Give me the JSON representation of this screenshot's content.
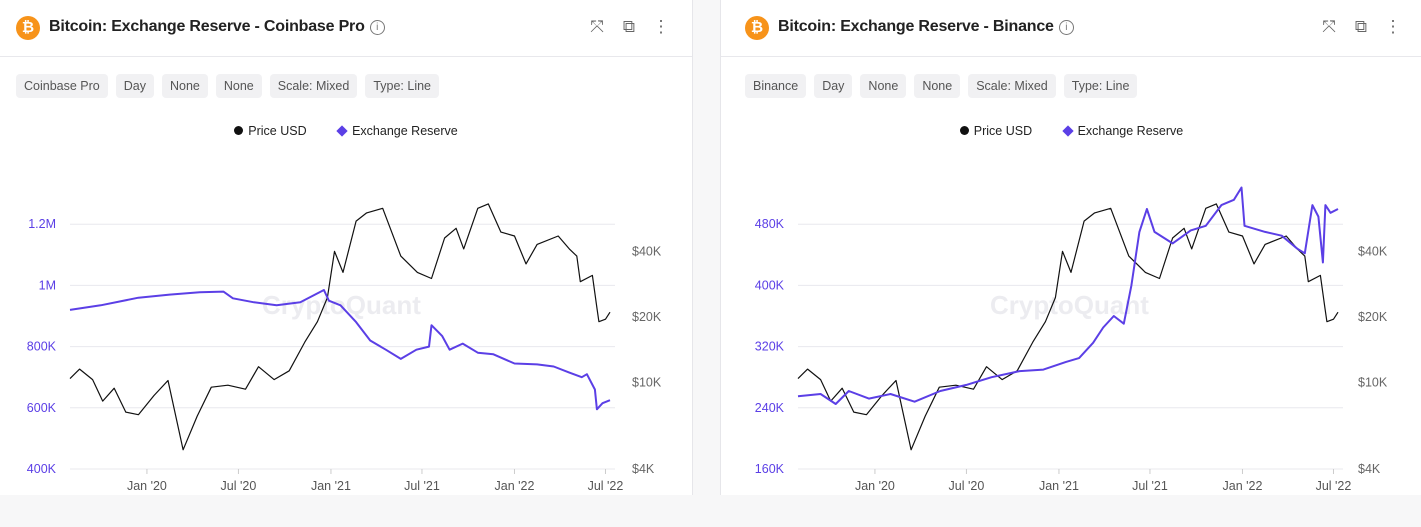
{
  "panels": [
    {
      "title": "Bitcoin: Exchange Reserve - Coinbase Pro",
      "chips": [
        "Coinbase Pro",
        "Day",
        "None",
        "None",
        "Scale: Mixed",
        "Type: Line"
      ],
      "legend": [
        "Price USD",
        "Exchange Reserve"
      ],
      "watermark": "CryptoQuant"
    },
    {
      "title": "Bitcoin: Exchange Reserve - Binance",
      "chips": [
        "Binance",
        "Day",
        "None",
        "None",
        "Scale: Mixed",
        "Type: Line"
      ],
      "legend": [
        "Price USD",
        "Exchange Reserve"
      ],
      "watermark": "CryptoQuant"
    }
  ],
  "icons": {
    "logo": "bitcoin-icon",
    "info": "info-icon",
    "expand": "expand-icon",
    "popout": "popout-icon",
    "more": "more-vertical-icon"
  },
  "colors": {
    "price": "#111111",
    "reserve": "#5b3fe6",
    "bitcoin": "#f7931a"
  },
  "chart_data": [
    {
      "type": "line",
      "x_ticks": [
        "Jan '20",
        "Jul '20",
        "Jan '21",
        "Jul '21",
        "Jan '22",
        "Jul '22"
      ],
      "x_tick_dates": [
        "2020-01-01",
        "2020-07-01",
        "2021-01-01",
        "2021-07-01",
        "2022-01-01",
        "2022-07-01"
      ],
      "xlim": [
        "2019-08-01",
        "2022-07-10"
      ],
      "y_left": {
        "ticks": [
          "400K",
          "600K",
          "800K",
          "1M",
          "1.2M"
        ],
        "values": [
          400000,
          600000,
          800000,
          1000000,
          1200000
        ],
        "ylim": [
          400000,
          1410000
        ],
        "scale": "linear"
      },
      "y_right": {
        "ticks": [
          "$4K",
          "$10K",
          "$20K",
          "$40K"
        ],
        "values": [
          4000,
          10000,
          20000,
          40000
        ],
        "ylim": [
          4000,
          105000
        ],
        "scale": "log"
      },
      "grid": true,
      "legend": "top-center",
      "series": [
        {
          "name": "Price USD",
          "axis": "right",
          "x": [
            "2019-08-01",
            "2019-08-20",
            "2019-09-15",
            "2019-10-05",
            "2019-10-28",
            "2019-11-20",
            "2019-12-15",
            "2020-01-15",
            "2020-02-12",
            "2020-03-13",
            "2020-04-10",
            "2020-05-08",
            "2020-06-10",
            "2020-07-15",
            "2020-08-10",
            "2020-09-10",
            "2020-10-10",
            "2020-11-10",
            "2020-12-05",
            "2020-12-25",
            "2021-01-08",
            "2021-01-25",
            "2021-02-20",
            "2021-03-13",
            "2021-04-14",
            "2021-05-20",
            "2021-06-22",
            "2021-07-20",
            "2021-08-15",
            "2021-09-07",
            "2021-09-22",
            "2021-10-20",
            "2021-11-10",
            "2021-12-05",
            "2022-01-01",
            "2022-01-24",
            "2022-02-15",
            "2022-03-29",
            "2022-04-20",
            "2022-05-05",
            "2022-05-12",
            "2022-06-05",
            "2022-06-14",
            "2022-06-18",
            "2022-07-01",
            "2022-07-10"
          ],
          "y": [
            10400,
            11500,
            10300,
            8200,
            9400,
            7300,
            7100,
            8700,
            10200,
            4900,
            7000,
            9500,
            9700,
            9300,
            11800,
            10300,
            11300,
            15300,
            19000,
            24500,
            40000,
            32000,
            55000,
            60000,
            63000,
            38000,
            32000,
            30000,
            46000,
            51000,
            41000,
            63000,
            66000,
            49000,
            47000,
            35000,
            43000,
            47000,
            41000,
            38000,
            29000,
            31000,
            22000,
            19000,
            19500,
            21000
          ]
        },
        {
          "name": "Exchange Reserve",
          "axis": "left",
          "x": [
            "2019-08-01",
            "2019-10-01",
            "2019-12-15",
            "2020-02-15",
            "2020-04-15",
            "2020-06-01",
            "2020-06-20",
            "2020-08-01",
            "2020-09-15",
            "2020-11-01",
            "2020-12-18",
            "2020-12-28",
            "2021-01-20",
            "2021-02-20",
            "2021-03-20",
            "2021-04-20",
            "2021-05-20",
            "2021-06-20",
            "2021-07-15",
            "2021-07-20",
            "2021-08-10",
            "2021-08-25",
            "2021-09-20",
            "2021-10-20",
            "2021-11-20",
            "2022-01-01",
            "2022-02-15",
            "2022-03-20",
            "2022-04-20",
            "2022-05-15",
            "2022-05-25",
            "2022-06-10",
            "2022-06-14",
            "2022-06-25",
            "2022-07-10"
          ],
          "y": [
            920000,
            935000,
            960000,
            970000,
            978000,
            980000,
            958000,
            945000,
            935000,
            945000,
            985000,
            950000,
            935000,
            880000,
            820000,
            790000,
            760000,
            790000,
            800000,
            870000,
            835000,
            790000,
            810000,
            780000,
            775000,
            745000,
            742000,
            735000,
            715000,
            700000,
            710000,
            660000,
            595000,
            615000,
            625000
          ]
        }
      ]
    },
    {
      "type": "line",
      "x_ticks": [
        "Jan '20",
        "Jul '20",
        "Jan '21",
        "Jul '21",
        "Jan '22",
        "Jul '22"
      ],
      "x_tick_dates": [
        "2020-01-01",
        "2020-07-01",
        "2021-01-01",
        "2021-07-01",
        "2022-01-01",
        "2022-07-01"
      ],
      "xlim": [
        "2019-08-01",
        "2022-07-10"
      ],
      "y_left": {
        "ticks": [
          "160K",
          "240K",
          "320K",
          "400K",
          "480K"
        ],
        "values": [
          160000,
          240000,
          320000,
          400000,
          480000
        ],
        "ylim": [
          160000,
          564000
        ],
        "scale": "linear"
      },
      "y_right": {
        "ticks": [
          "$4K",
          "$10K",
          "$20K",
          "$40K"
        ],
        "values": [
          4000,
          10000,
          20000,
          40000
        ],
        "ylim": [
          4000,
          105000
        ],
        "scale": "log"
      },
      "grid": true,
      "legend": "top-center",
      "series": [
        {
          "name": "Price USD",
          "axis": "right",
          "x": [
            "2019-08-01",
            "2019-08-20",
            "2019-09-15",
            "2019-10-05",
            "2019-10-28",
            "2019-11-20",
            "2019-12-15",
            "2020-01-15",
            "2020-02-12",
            "2020-03-13",
            "2020-04-10",
            "2020-05-08",
            "2020-06-10",
            "2020-07-15",
            "2020-08-10",
            "2020-09-10",
            "2020-10-10",
            "2020-11-10",
            "2020-12-05",
            "2020-12-25",
            "2021-01-08",
            "2021-01-25",
            "2021-02-20",
            "2021-03-13",
            "2021-04-14",
            "2021-05-20",
            "2021-06-22",
            "2021-07-20",
            "2021-08-15",
            "2021-09-07",
            "2021-09-22",
            "2021-10-20",
            "2021-11-10",
            "2021-12-05",
            "2022-01-01",
            "2022-01-24",
            "2022-02-15",
            "2022-03-29",
            "2022-04-20",
            "2022-05-05",
            "2022-05-12",
            "2022-06-05",
            "2022-06-14",
            "2022-06-18",
            "2022-07-01",
            "2022-07-10"
          ],
          "y": [
            10400,
            11500,
            10300,
            8200,
            9400,
            7300,
            7100,
            8700,
            10200,
            4900,
            7000,
            9500,
            9700,
            9300,
            11800,
            10300,
            11300,
            15300,
            19000,
            24500,
            40000,
            32000,
            55000,
            60000,
            63000,
            38000,
            32000,
            30000,
            46000,
            51000,
            41000,
            63000,
            66000,
            49000,
            47000,
            35000,
            43000,
            47000,
            41000,
            38000,
            29000,
            31000,
            22000,
            19000,
            19500,
            21000
          ]
        },
        {
          "name": "Exchange Reserve",
          "axis": "left",
          "x": [
            "2019-08-01",
            "2019-09-15",
            "2019-10-15",
            "2019-11-10",
            "2019-12-20",
            "2020-02-01",
            "2020-03-20",
            "2020-05-10",
            "2020-07-01",
            "2020-08-20",
            "2020-10-15",
            "2020-12-01",
            "2021-01-15",
            "2021-02-10",
            "2021-03-10",
            "2021-03-30",
            "2021-04-20",
            "2021-05-10",
            "2021-05-25",
            "2021-06-10",
            "2021-06-25",
            "2021-07-10",
            "2021-08-15",
            "2021-09-20",
            "2021-10-20",
            "2021-11-20",
            "2021-12-15",
            "2021-12-30",
            "2022-01-05",
            "2022-02-15",
            "2022-03-20",
            "2022-04-20",
            "2022-05-05",
            "2022-05-20",
            "2022-06-01",
            "2022-06-10",
            "2022-06-15",
            "2022-06-25",
            "2022-07-10"
          ],
          "y": [
            255000,
            258000,
            245000,
            262000,
            252000,
            258000,
            248000,
            262000,
            270000,
            280000,
            288000,
            290000,
            300000,
            305000,
            325000,
            345000,
            360000,
            350000,
            400000,
            470000,
            500000,
            470000,
            455000,
            472000,
            478000,
            505000,
            512000,
            528000,
            478000,
            470000,
            465000,
            448000,
            442000,
            505000,
            490000,
            430000,
            505000,
            495000,
            500000
          ]
        }
      ]
    }
  ]
}
